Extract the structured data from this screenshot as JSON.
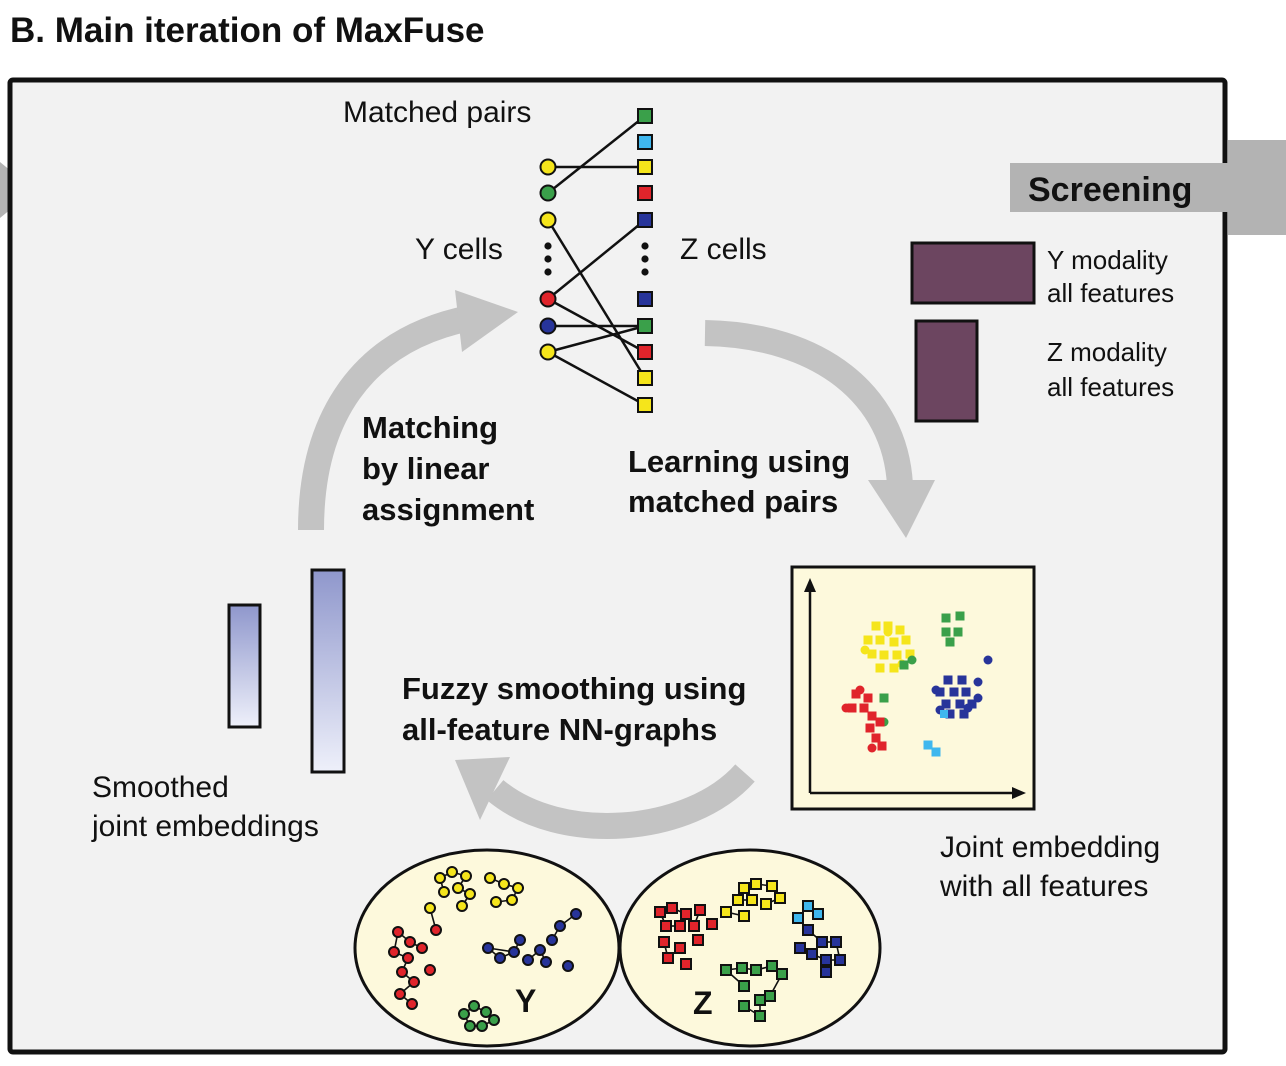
{
  "title": "B. Main iteration of MaxFuse",
  "matching": {
    "caption": "Matched pairs",
    "y_label": "Y cells",
    "z_label": "Z cells",
    "y_cells": [
      "yellow",
      "green",
      "yellow",
      "red",
      "navy",
      "yellow"
    ],
    "z_cells": [
      "green",
      "cyan",
      "yellow",
      "red",
      "navy",
      "navy",
      "green",
      "red",
      "yellow",
      "yellow"
    ]
  },
  "steps": {
    "matching": [
      "Matching",
      "by linear",
      "assignment"
    ],
    "learning": [
      "Learning using",
      "matched pairs"
    ],
    "smoothing": [
      "Fuzzy smoothing using",
      "all-feature NN-graphs"
    ]
  },
  "screening": {
    "label": "Screening",
    "y_modality": [
      "Y modality",
      "all features"
    ],
    "z_modality": [
      "Z modality",
      "all features"
    ]
  },
  "joint_embedding": {
    "caption": [
      "Joint embedding",
      "with all features"
    ]
  },
  "smoothed": {
    "caption": [
      "Smoothed",
      "joint embeddings"
    ]
  },
  "graphs": {
    "y_label": "Y",
    "z_label": "Z"
  },
  "colors": {
    "yellow": "#f5e51b",
    "green": "#3aa04a",
    "red": "#e0242b",
    "navy": "#27349a",
    "cyan": "#3fb7ee",
    "panel": "#f2f2f2",
    "cream": "#fdf9dc",
    "arrow": "#c3c3c3",
    "bar_purple": "#6c4560",
    "embed_blue": "#a6acd6"
  }
}
